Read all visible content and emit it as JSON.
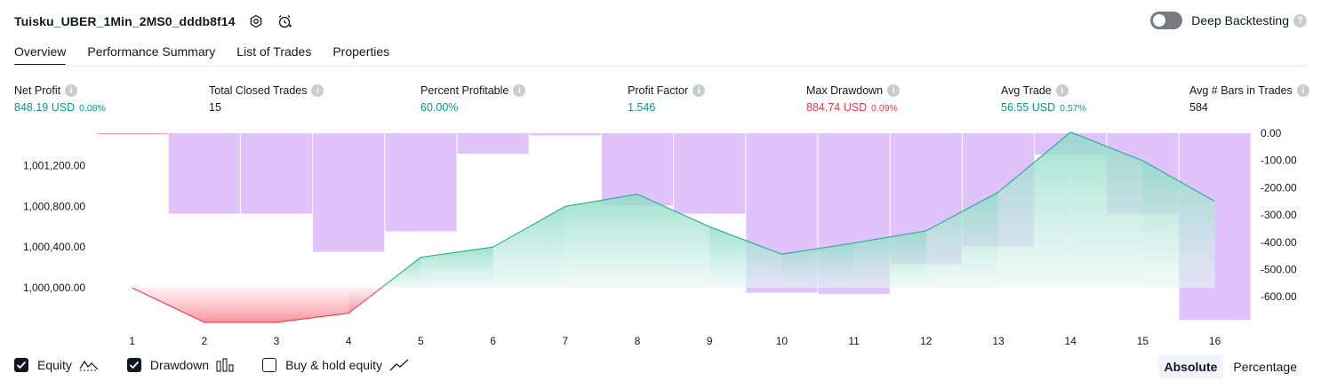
{
  "header": {
    "title": "Tuisku_UBER_1Min_2MS0_dddb8f14",
    "icons": [
      "settings-icon",
      "add-alert-icon"
    ],
    "deep_backtesting_label": "Deep Backtesting",
    "deep_backtesting_on": false
  },
  "tabs": [
    {
      "label": "Overview",
      "active": true
    },
    {
      "label": "Performance Summary",
      "active": false
    },
    {
      "label": "List of Trades",
      "active": false
    },
    {
      "label": "Properties",
      "active": false
    }
  ],
  "metrics": [
    {
      "label": "Net Profit",
      "value": "848.19 USD",
      "pct": "0.08%",
      "color": "#089981"
    },
    {
      "label": "Total Closed Trades",
      "value": "15",
      "pct": "",
      "color": "#131722"
    },
    {
      "label": "Percent Profitable",
      "value": "60.00%",
      "pct": "",
      "color": "#089981"
    },
    {
      "label": "Profit Factor",
      "value": "1.546",
      "pct": "",
      "color": "#089981"
    },
    {
      "label": "Max Drawdown",
      "value": "884.74 USD",
      "pct": "0.09%",
      "color": "#f23645"
    },
    {
      "label": "Avg Trade",
      "value": "56.55 USD",
      "pct": "0.57%",
      "color": "#089981"
    },
    {
      "label": "Avg # Bars in Trades",
      "value": "584",
      "pct": "",
      "color": "#131722"
    }
  ],
  "chart_data": {
    "type": "line+bar",
    "categories": [
      "1",
      "2",
      "3",
      "4",
      "5",
      "6",
      "7",
      "8",
      "9",
      "10",
      "11",
      "12",
      "13",
      "14",
      "15",
      "16"
    ],
    "equity": [
      1000000,
      999660,
      999660,
      999750,
      1000300,
      1000400,
      1000800,
      1000920,
      1000600,
      1000330,
      1000440,
      1000560,
      1000940,
      1001530,
      1001250,
      1000850
    ],
    "equity_baseline": 1000000,
    "drawdown": [
      0,
      -295,
      -295,
      -435,
      -360,
      -75,
      -8,
      -265,
      -295,
      -585,
      -590,
      -480,
      -415,
      -78,
      -295,
      -685
    ],
    "left_axis": {
      "ticks": [
        1000000,
        1000400,
        1000800,
        1001200
      ],
      "labels": [
        "1,000,000.00",
        "1,000,400.00",
        "1,000,800.00",
        "1,001,200.00"
      ]
    },
    "right_axis": {
      "ticks": [
        0,
        -100,
        -200,
        -300,
        -400,
        -500,
        -600
      ],
      "labels": [
        "0.00",
        "-100.00",
        "-200.00",
        "-300.00",
        "-400.00",
        "-500.00",
        "-600.00"
      ]
    },
    "colors": {
      "equity_line": "#22ab94",
      "equity_loss_line": "#f23645",
      "drawdown_bar": "#e1c3fc",
      "equity_fill": "#b9e8db",
      "loss_fill": "#f7a5ab"
    }
  },
  "legend": [
    {
      "label": "Equity",
      "checked": true
    },
    {
      "label": "Drawdown",
      "checked": true
    },
    {
      "label": "Buy & hold equity",
      "checked": false
    }
  ],
  "modes": [
    {
      "label": "Absolute",
      "active": true
    },
    {
      "label": "Percentage",
      "active": false
    }
  ]
}
